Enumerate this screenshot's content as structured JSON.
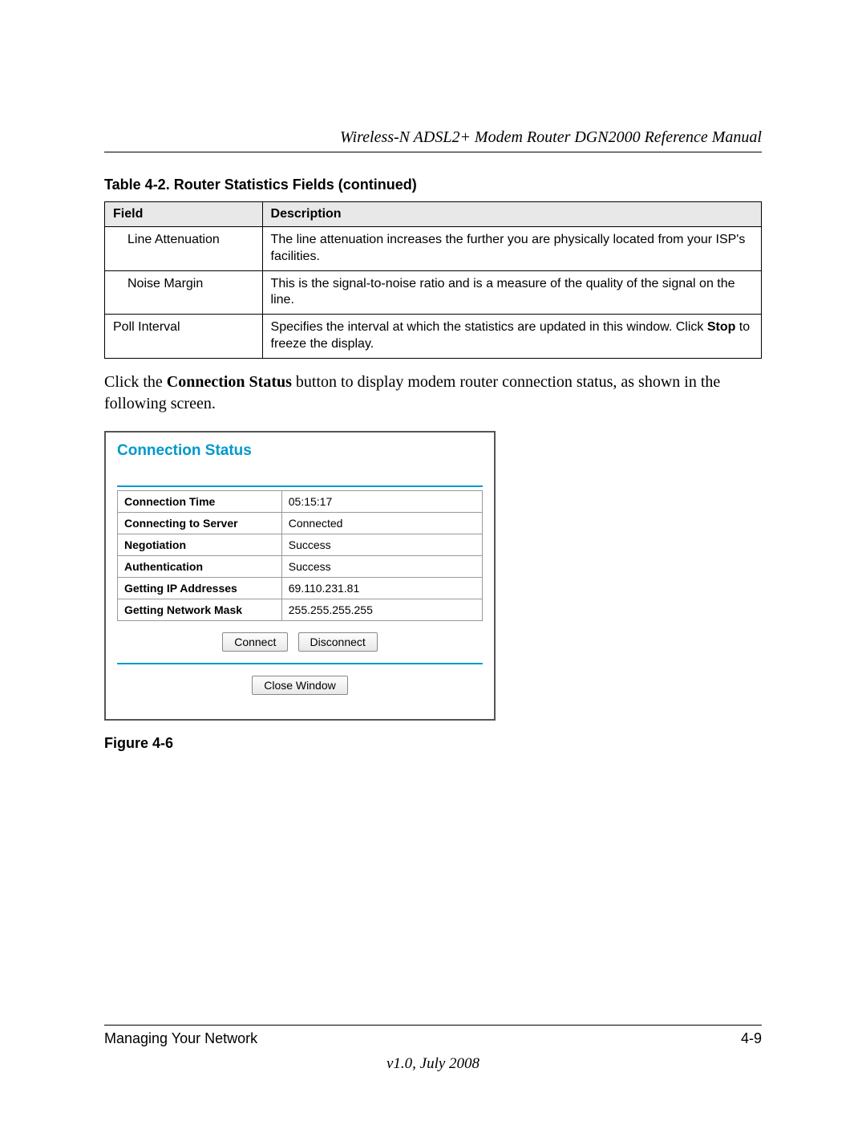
{
  "header": {
    "running_title": "Wireless-N ADSL2+ Modem Router DGN2000 Reference Manual"
  },
  "table_caption": "Table 4-2.   Router Statistics Fields (continued)",
  "stats_table": {
    "columns": [
      "Field",
      "Description"
    ],
    "header_bg": "#e8e8e8",
    "border_color": "#000000",
    "rows": [
      {
        "field": "Line Attenuation",
        "indent": true,
        "description": "The line attenuation increases the further you are physically located from your ISP's facilities."
      },
      {
        "field": "Noise Margin",
        "indent": true,
        "description": "This is the signal-to-noise ratio and is a measure of the quality of the signal on the line."
      },
      {
        "field": "Poll Interval",
        "indent": false,
        "description_pre": "Specifies the interval at which the statistics are updated in this window. Click ",
        "description_bold": "Stop",
        "description_post": " to freeze the display."
      }
    ]
  },
  "body_text": {
    "pre": "Click the ",
    "bold": "Connection Status",
    "post": " button to display modem router connection status, as shown in the following screen."
  },
  "connection_status": {
    "title": "Connection Status",
    "title_color": "#0099cc",
    "rule_color": "#0099cc",
    "rows": [
      {
        "label": "Connection Time",
        "value": "05:15:17"
      },
      {
        "label": "Connecting to Server",
        "value": "Connected"
      },
      {
        "label": "Negotiation",
        "value": "Success"
      },
      {
        "label": "Authentication",
        "value": "Success"
      },
      {
        "label": "Getting IP Addresses",
        "value": "69.110.231.81"
      },
      {
        "label": "Getting Network Mask",
        "value": "255.255.255.255"
      }
    ],
    "buttons_row1": [
      "Connect",
      "Disconnect"
    ],
    "buttons_row2": [
      "Close Window"
    ]
  },
  "figure_caption": "Figure 4-6",
  "footer": {
    "left": "Managing Your Network",
    "right": "4-9",
    "version": "v1.0, July 2008"
  }
}
